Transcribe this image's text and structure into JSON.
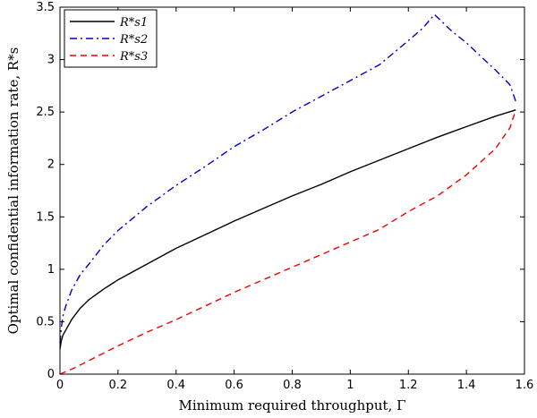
{
  "chart_data": {
    "type": "line",
    "title": "",
    "xlabel": "Minimum required throughput, Γ",
    "ylabel": "Optimal confidential information rate, R*s",
    "xlim": [
      0,
      1.6
    ],
    "ylim": [
      0,
      3.5
    ],
    "x_ticks": [
      "0",
      "0.2",
      "0.4",
      "0.6",
      "0.8",
      "1",
      "1.2",
      "1.4",
      "1.6"
    ],
    "y_ticks": [
      "0",
      "0.5",
      "1",
      "1.5",
      "2",
      "2.5",
      "3",
      "3.5"
    ],
    "grid": false,
    "legend_position": "top-left",
    "series": [
      {
        "name": "R*s1",
        "color": "#000000",
        "dash": "solid",
        "points": [
          [
            0.0,
            0.24
          ],
          [
            0.005,
            0.32
          ],
          [
            0.01,
            0.37
          ],
          [
            0.02,
            0.42
          ],
          [
            0.04,
            0.52
          ],
          [
            0.07,
            0.63
          ],
          [
            0.1,
            0.71
          ],
          [
            0.15,
            0.81
          ],
          [
            0.2,
            0.9
          ],
          [
            0.3,
            1.05
          ],
          [
            0.4,
            1.2
          ],
          [
            0.5,
            1.33
          ],
          [
            0.6,
            1.46
          ],
          [
            0.7,
            1.58
          ],
          [
            0.8,
            1.7
          ],
          [
            0.9,
            1.81
          ],
          [
            1.0,
            1.93
          ],
          [
            1.1,
            2.04
          ],
          [
            1.2,
            2.15
          ],
          [
            1.3,
            2.26
          ],
          [
            1.4,
            2.36
          ],
          [
            1.5,
            2.46
          ],
          [
            1.57,
            2.52
          ]
        ]
      },
      {
        "name": "R*s2",
        "color": "#0000cc",
        "dash": "dashdot",
        "points": [
          [
            0.0,
            0.3
          ],
          [
            0.005,
            0.45
          ],
          [
            0.01,
            0.55
          ],
          [
            0.02,
            0.65
          ],
          [
            0.04,
            0.8
          ],
          [
            0.07,
            0.95
          ],
          [
            0.1,
            1.05
          ],
          [
            0.15,
            1.23
          ],
          [
            0.2,
            1.37
          ],
          [
            0.3,
            1.6
          ],
          [
            0.4,
            1.8
          ],
          [
            0.5,
            1.98
          ],
          [
            0.6,
            2.17
          ],
          [
            0.7,
            2.33
          ],
          [
            0.8,
            2.5
          ],
          [
            0.9,
            2.65
          ],
          [
            1.0,
            2.8
          ],
          [
            1.1,
            2.95
          ],
          [
            1.2,
            3.18
          ],
          [
            1.25,
            3.3
          ],
          [
            1.29,
            3.43
          ],
          [
            1.35,
            3.27
          ],
          [
            1.4,
            3.16
          ],
          [
            1.45,
            3.03
          ],
          [
            1.5,
            2.9
          ],
          [
            1.55,
            2.76
          ],
          [
            1.57,
            2.6
          ]
        ]
      },
      {
        "name": "R*s3",
        "color": "#ee0000",
        "dash": "dashed",
        "points": [
          [
            0.0,
            0.0
          ],
          [
            0.05,
            0.06
          ],
          [
            0.1,
            0.13
          ],
          [
            0.2,
            0.27
          ],
          [
            0.3,
            0.4
          ],
          [
            0.4,
            0.52
          ],
          [
            0.5,
            0.65
          ],
          [
            0.6,
            0.78
          ],
          [
            0.7,
            0.9
          ],
          [
            0.8,
            1.02
          ],
          [
            0.9,
            1.14
          ],
          [
            1.0,
            1.26
          ],
          [
            1.1,
            1.38
          ],
          [
            1.2,
            1.55
          ],
          [
            1.3,
            1.7
          ],
          [
            1.4,
            1.9
          ],
          [
            1.5,
            2.15
          ],
          [
            1.55,
            2.35
          ],
          [
            1.57,
            2.52
          ]
        ]
      }
    ]
  }
}
